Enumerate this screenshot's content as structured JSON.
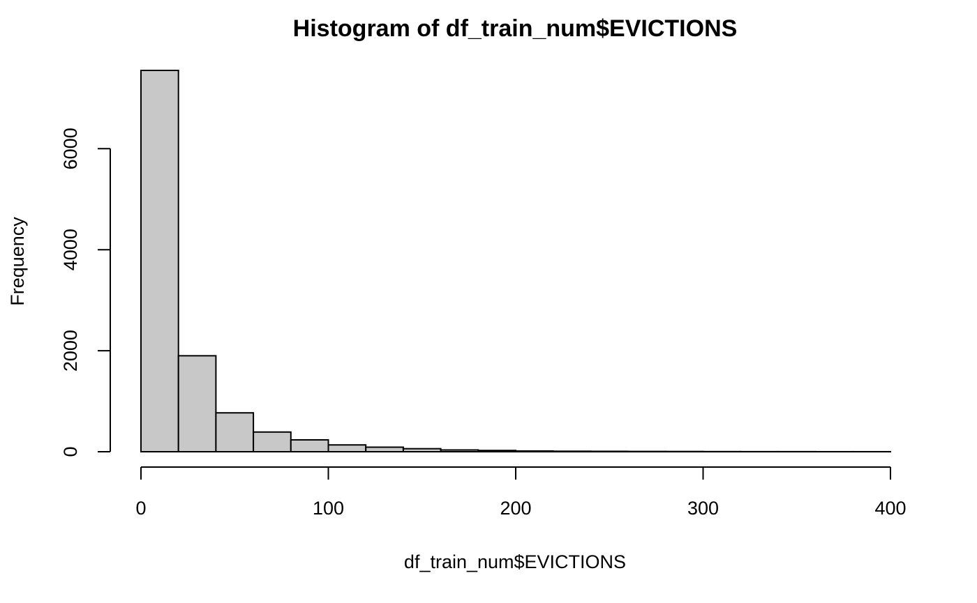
{
  "chart_data": {
    "type": "bar",
    "title": "Histogram of df_train_num$EVICTIONS",
    "xlabel": "df_train_num$EVICTIONS",
    "ylabel": "Frequency",
    "bin_edges": [
      0,
      20,
      40,
      60,
      80,
      100,
      120,
      140,
      160,
      180,
      200,
      220,
      240,
      260,
      280,
      300,
      320,
      340,
      360,
      380,
      400
    ],
    "values": [
      7550,
      1900,
      770,
      390,
      235,
      135,
      90,
      60,
      35,
      25,
      15,
      10,
      8,
      6,
      5,
      3,
      2,
      2,
      1,
      1
    ],
    "xlim": [
      0,
      400
    ],
    "ylim": [
      0,
      7550
    ],
    "x_ticks": [
      0,
      100,
      200,
      300,
      400
    ],
    "y_ticks": [
      0,
      2000,
      4000,
      6000
    ],
    "x_tick_labels": [
      "0",
      "100",
      "200",
      "300",
      "400"
    ],
    "y_tick_labels": [
      "0",
      "2000",
      "4000",
      "6000"
    ],
    "bar_color": "#c8c8c8",
    "grid": false,
    "legend": "none"
  }
}
